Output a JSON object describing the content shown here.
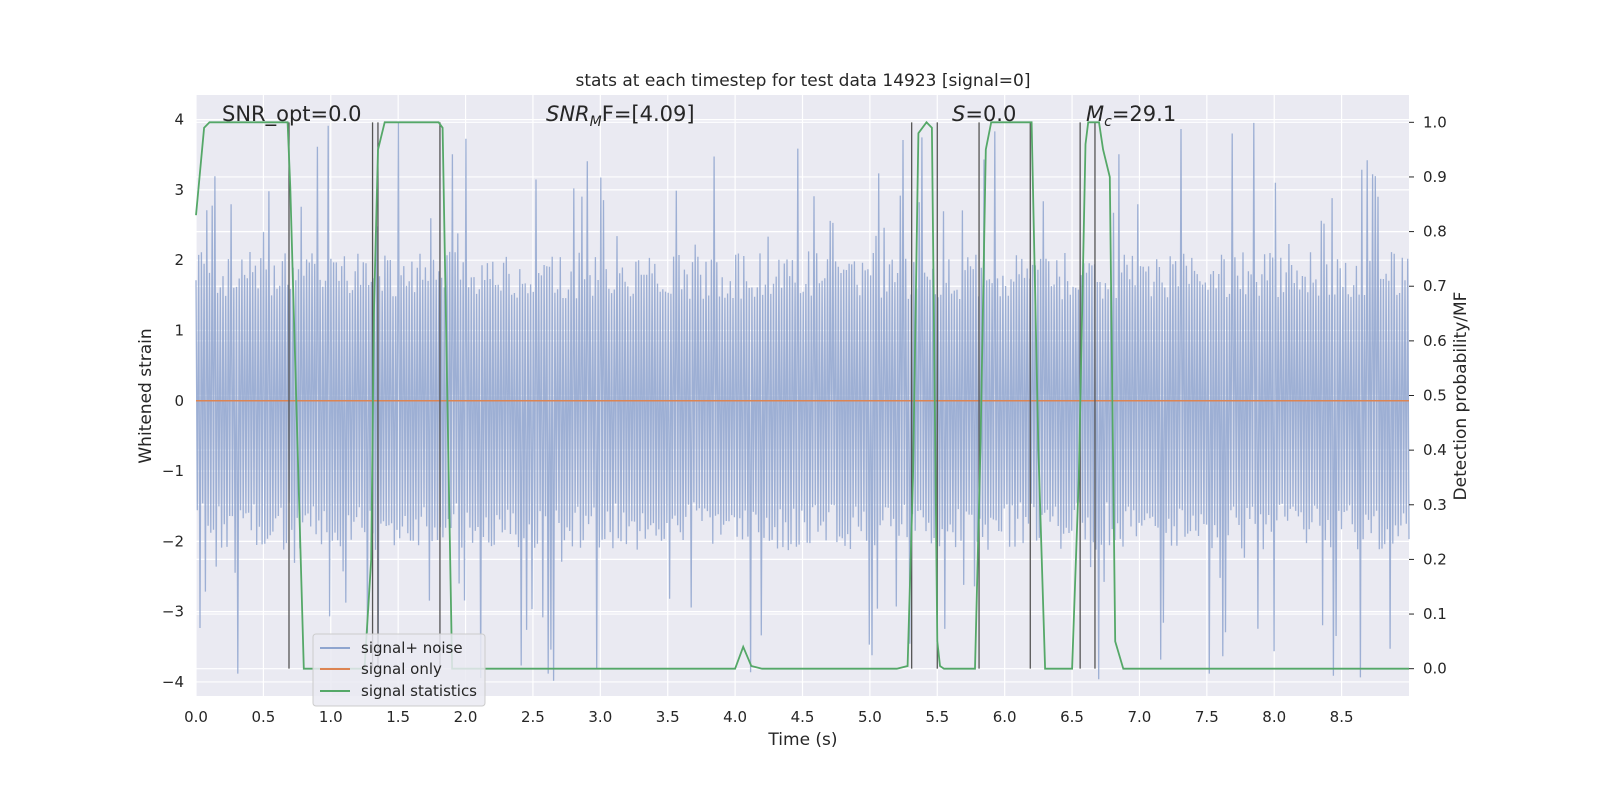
{
  "chart_data": {
    "type": "line",
    "title": "stats at each timestep for test data 14923 [signal=0]",
    "xlabel": "Time (s)",
    "ylabel": "Whitened strain",
    "ylabel_right": "Detection probability/MF",
    "xlim": [
      0.0,
      9.0
    ],
    "ylim": [
      -4.2,
      4.35
    ],
    "ylim_right": [
      -0.05,
      1.05
    ],
    "x_ticks": [
      "0.0",
      "0.5",
      "1.0",
      "1.5",
      "2.0",
      "2.5",
      "3.0",
      "3.5",
      "4.0",
      "4.5",
      "5.0",
      "5.5",
      "6.0",
      "6.5",
      "7.0",
      "7.5",
      "8.0",
      "8.5"
    ],
    "y_ticks": [
      "4",
      "3",
      "2",
      "1",
      "0",
      "−1",
      "−2",
      "−3",
      "−4"
    ],
    "y_tick_values": [
      4,
      3,
      2,
      1,
      0,
      -1,
      -2,
      -3,
      -4
    ],
    "y_right_ticks": [
      "1.0",
      "0.9",
      "0.8",
      "0.7",
      "0.6",
      "0.5",
      "0.4",
      "0.3",
      "0.2",
      "0.1",
      "0.0"
    ],
    "y_right_tick_values": [
      1.0,
      0.9,
      0.8,
      0.7,
      0.6,
      0.5,
      0.4,
      0.3,
      0.2,
      0.1,
      0.0
    ],
    "grid": true,
    "legend_position": "lower-left",
    "annotations": {
      "snr_opt": "SNR_opt=0.0",
      "snr_mf_main": "SNR",
      "snr_mf_sub": "M",
      "snr_mf_rest": "F=[4.09]",
      "s_main": "S",
      "s_rest": "=0.0",
      "mc_main": "M",
      "mc_sub": "c",
      "mc_rest": "=29.1"
    },
    "series": [
      {
        "name": "signal+ noise",
        "axis": "left",
        "color": "#8fa5cf",
        "description_envelope": {
          "typical_abs": 1.7,
          "peak_abs": 4.0
        },
        "samples": 900
      },
      {
        "name": "signal only",
        "axis": "left",
        "color": "#dd8452",
        "x": [
          0.0,
          9.0
        ],
        "values": [
          0.0,
          0.0
        ]
      },
      {
        "name": "signal statistics",
        "axis": "right",
        "color": "#55a868",
        "x": [
          0.0,
          0.06,
          0.1,
          0.2,
          0.3,
          0.4,
          0.5,
          0.6,
          0.68,
          0.7,
          0.8,
          0.9,
          1.0,
          1.1,
          1.2,
          1.25,
          1.3,
          1.32,
          1.35,
          1.4,
          1.5,
          1.6,
          1.7,
          1.8,
          1.83,
          1.9,
          2.0,
          2.5,
          3.0,
          3.5,
          3.9,
          4.0,
          4.06,
          4.12,
          4.2,
          4.5,
          5.0,
          5.2,
          5.28,
          5.32,
          5.36,
          5.42,
          5.46,
          5.5,
          5.52,
          5.55,
          5.6,
          5.7,
          5.78,
          5.82,
          5.86,
          5.9,
          6.0,
          6.1,
          6.2,
          6.25,
          6.3,
          6.4,
          6.5,
          6.55,
          6.6,
          6.62,
          6.65,
          6.7,
          6.73,
          6.78,
          6.82,
          6.88,
          7.0,
          7.5,
          8.0,
          8.5,
          9.0
        ],
        "values": [
          0.83,
          0.99,
          1.0,
          1.0,
          1.0,
          1.0,
          1.0,
          1.0,
          1.0,
          0.88,
          0.0,
          0.0,
          0.0,
          0.0,
          0.0,
          0.0,
          0.2,
          0.65,
          0.95,
          1.0,
          1.0,
          1.0,
          1.0,
          1.0,
          0.99,
          0.0,
          0.0,
          0.0,
          0.0,
          0.0,
          0.0,
          0.0,
          0.04,
          0.005,
          0.0,
          0.0,
          0.0,
          0.0,
          0.005,
          0.35,
          0.98,
          1.0,
          0.99,
          0.05,
          0.005,
          0.0,
          0.0,
          0.0,
          0.0,
          0.4,
          0.95,
          1.0,
          1.0,
          1.0,
          1.0,
          0.4,
          0.0,
          0.0,
          0.0,
          0.35,
          0.96,
          1.0,
          1.0,
          1.0,
          0.95,
          0.9,
          0.05,
          0.0,
          0.0,
          0.0,
          0.0,
          0.0,
          0.0
        ]
      }
    ],
    "vertical_markers_x": [
      0.69,
      1.31,
      1.35,
      1.81,
      5.31,
      5.5,
      5.81,
      6.19,
      6.56,
      6.67
    ]
  }
}
